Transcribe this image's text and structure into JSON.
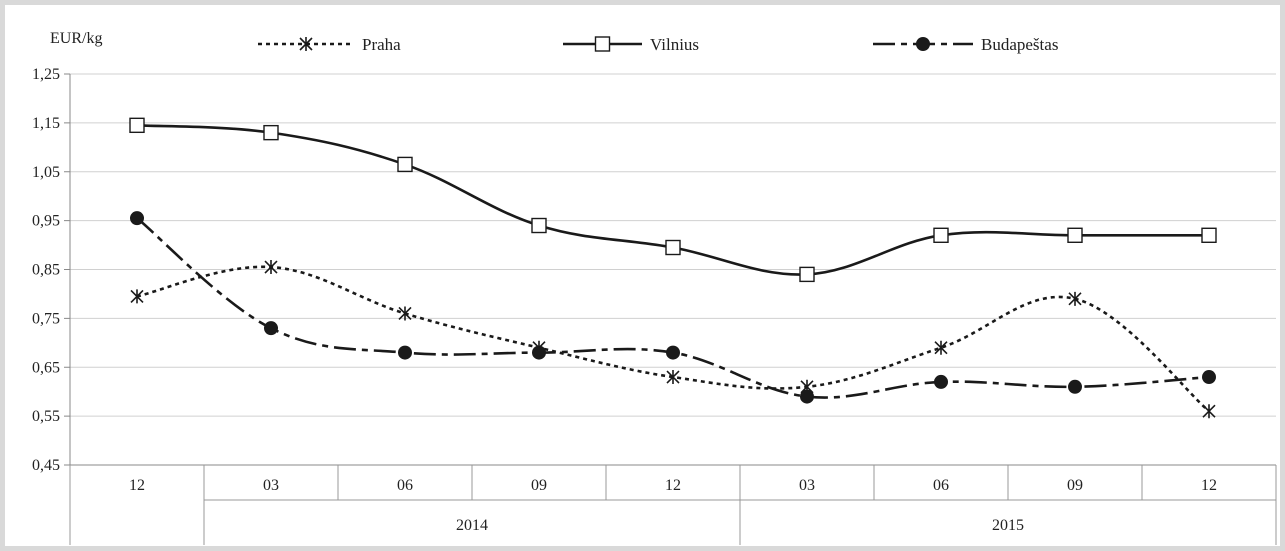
{
  "chart_data": {
    "type": "line",
    "ylabel": "EUR/kg",
    "ylim": [
      0.45,
      1.25
    ],
    "yticks": [
      "1,25",
      "1,15",
      "1,05",
      "0,95",
      "0,85",
      "0,75",
      "0,65",
      "0,55",
      "0,45"
    ],
    "ytick_values": [
      1.25,
      1.15,
      1.05,
      0.95,
      0.85,
      0.75,
      0.65,
      0.55,
      0.45
    ],
    "categories": [
      "12",
      "03",
      "06",
      "09",
      "12",
      "03",
      "06",
      "09",
      "12"
    ],
    "year_groups": [
      {
        "label": "2014",
        "from": 1,
        "to": 4
      },
      {
        "label": "2015",
        "from": 5,
        "to": 8
      }
    ],
    "grid": true,
    "legend_position": "top",
    "series": [
      {
        "name": "Praha",
        "marker": "asterisk",
        "line": "dotted",
        "color": "#1a1a1a",
        "values": [
          0.795,
          0.855,
          0.76,
          0.69,
          0.63,
          0.61,
          0.69,
          0.79,
          0.56
        ]
      },
      {
        "name": "Vilnius",
        "marker": "open-square",
        "line": "solid",
        "color": "#1a1a1a",
        "values": [
          1.145,
          1.13,
          1.065,
          0.94,
          0.895,
          0.84,
          0.92,
          0.92,
          0.92
        ]
      },
      {
        "name": "Budapeštas",
        "marker": "filled-circle",
        "line": "dash-dot",
        "color": "#1a1a1a",
        "values": [
          0.955,
          0.73,
          0.68,
          0.68,
          0.68,
          0.59,
          0.62,
          0.61,
          0.63
        ]
      }
    ]
  }
}
